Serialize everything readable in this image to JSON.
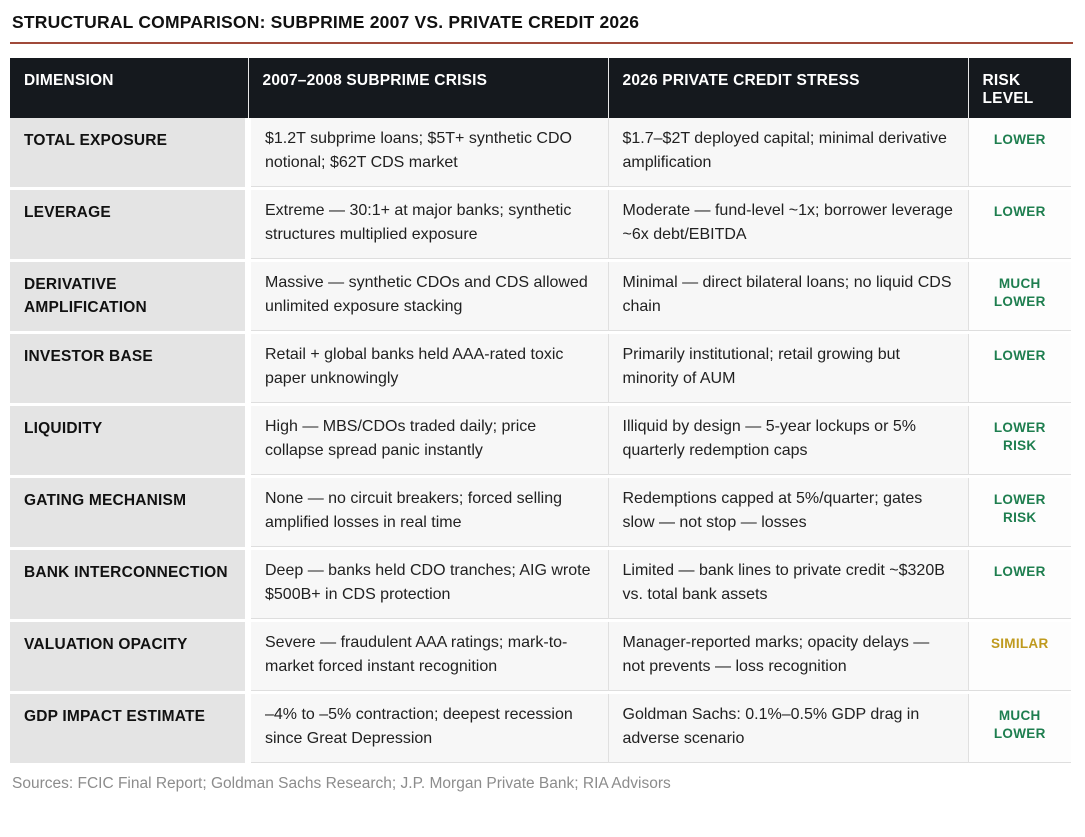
{
  "page": {
    "title": "STRUCTURAL COMPARISON: SUBPRIME 2007 VS. PRIVATE CREDIT 2026",
    "footer": "Sources: FCIC Final Report; Goldman Sachs Research; J.P. Morgan Private Bank; RIA Advisors"
  },
  "colors": {
    "title_rule": "#a04a3a",
    "header_bg": "#15191e",
    "risk_green": "#1e7e4f",
    "risk_gold": "#bf9a1e",
    "dimension_bg": "#e4e4e4",
    "body_bg": "#f7f7f7"
  },
  "table": {
    "headers": [
      "DIMENSION",
      "2007–2008 SUBPRIME CRISIS",
      "2026 PRIVATE CREDIT STRESS",
      "RISK LEVEL"
    ],
    "rows": [
      {
        "dimension": "TOTAL EXPOSURE",
        "subprime": "$1.2T subprime loans; $5T+ synthetic CDO notional; $62T CDS market",
        "private_credit": "$1.7–$2T deployed capital; minimal derivative amplification",
        "risk": "LOWER",
        "risk_color": "#1e7e4f"
      },
      {
        "dimension": "LEVERAGE",
        "subprime": "Extreme — 30:1+ at major banks; synthetic structures multiplied exposure",
        "private_credit": "Moderate — fund-level ~1x; borrower leverage ~6x debt/EBITDA",
        "risk": "LOWER",
        "risk_color": "#1e7e4f"
      },
      {
        "dimension": "DERIVATIVE AMPLIFICATION",
        "subprime": "Massive — synthetic CDOs and CDS allowed unlimited exposure stacking",
        "private_credit": "Minimal — direct bilateral loans; no liquid CDS chain",
        "risk": "MUCH LOWER",
        "risk_color": "#1e7e4f"
      },
      {
        "dimension": "INVESTOR BASE",
        "subprime": "Retail + global banks held AAA-rated toxic paper unknowingly",
        "private_credit": "Primarily institutional; retail growing but minority of AUM",
        "risk": "LOWER",
        "risk_color": "#1e7e4f"
      },
      {
        "dimension": "LIQUIDITY",
        "subprime": "High — MBS/CDOs traded daily; price collapse spread panic instantly",
        "private_credit": "Illiquid by design — 5-year lockups or 5% quarterly redemption caps",
        "risk": "LOWER RISK",
        "risk_color": "#1e7e4f"
      },
      {
        "dimension": "GATING MECHANISM",
        "subprime": "None — no circuit breakers; forced selling amplified losses in real time",
        "private_credit": "Redemptions capped at 5%/quarter; gates slow — not stop — losses",
        "risk": "LOWER RISK",
        "risk_color": "#1e7e4f"
      },
      {
        "dimension": "BANK INTERCONNECTION",
        "subprime": "Deep — banks held CDO tranches; AIG wrote $500B+ in CDS protection",
        "private_credit": "Limited — bank lines to private credit ~$320B vs. total bank assets",
        "risk": "LOWER",
        "risk_color": "#1e7e4f"
      },
      {
        "dimension": "VALUATION OPACITY",
        "subprime": "Severe — fraudulent AAA ratings; mark-to-market forced instant recognition",
        "private_credit": "Manager-reported marks; opacity delays — not prevents — loss recognition",
        "risk": "SIMILAR",
        "risk_color": "#bf9a1e"
      },
      {
        "dimension": "GDP IMPACT ESTIMATE",
        "subprime": "–4% to –5% contraction; deepest recession since Great Depression",
        "private_credit": "Goldman Sachs: 0.1%–0.5% GDP drag in adverse scenario",
        "risk": "MUCH LOWER",
        "risk_color": "#1e7e4f"
      }
    ]
  }
}
